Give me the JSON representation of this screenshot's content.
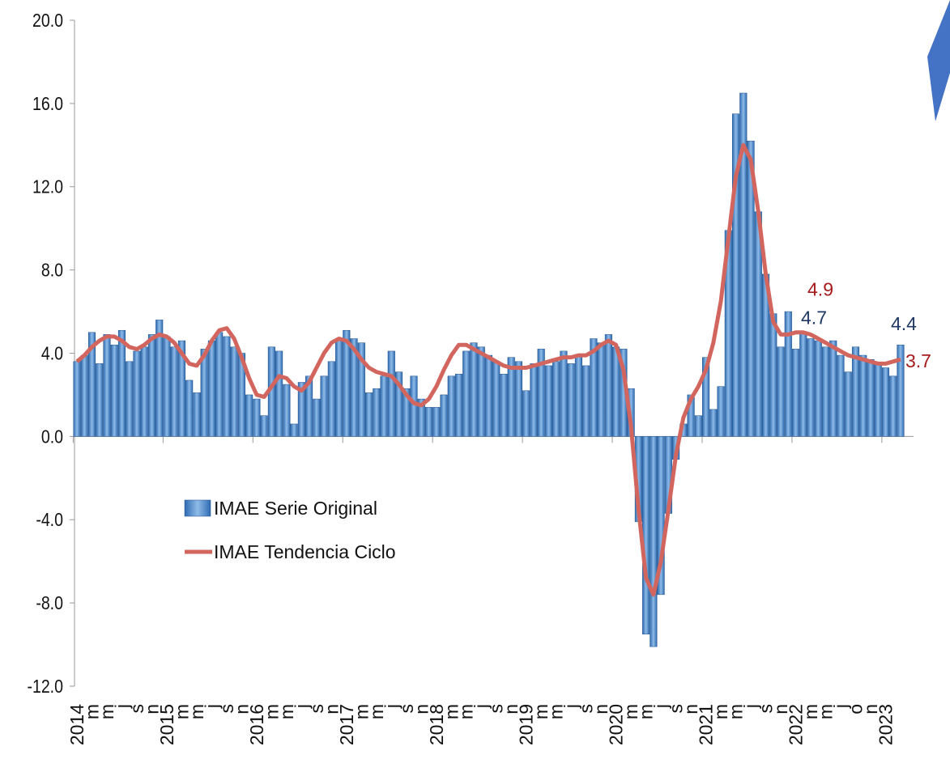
{
  "chart_data": {
    "type": "bar",
    "categories": [
      "2014",
      null,
      "m",
      null,
      "m",
      null,
      "j",
      null,
      "s",
      null,
      "n",
      null,
      "2015",
      null,
      "m",
      null,
      "m",
      null,
      "j",
      null,
      "s",
      null,
      "n",
      null,
      "2016",
      null,
      "m",
      null,
      "m",
      null,
      "j",
      null,
      "s",
      null,
      "n",
      null,
      "2017",
      null,
      "m",
      null,
      "m",
      null,
      "j",
      null,
      "s",
      null,
      "n",
      null,
      "2018",
      null,
      "m",
      null,
      "m",
      null,
      "j",
      null,
      "s",
      null,
      "n",
      null,
      "2019",
      null,
      "m",
      null,
      "m",
      null,
      "j",
      null,
      "s",
      null,
      "n",
      null,
      "2020",
      null,
      "m",
      null,
      "m",
      null,
      "j",
      null,
      "s",
      null,
      "n",
      null,
      "2021",
      null,
      "m",
      null,
      "m",
      null,
      "j",
      null,
      "s",
      null,
      "n",
      null,
      "2022",
      null,
      "m",
      null,
      "m",
      null,
      "j",
      null,
      "o",
      null,
      "n",
      null,
      "2023",
      null,
      null
    ],
    "series": [
      {
        "name": "IMAE Serie Original",
        "color": "#4a86c8",
        "values": [
          3.6,
          3.9,
          5.0,
          3.5,
          4.9,
          4.4,
          5.1,
          3.6,
          4.1,
          4.3,
          4.9,
          5.6,
          4.8,
          4.3,
          4.6,
          2.7,
          2.1,
          4.2,
          4.6,
          5.0,
          4.8,
          4.3,
          4.0,
          2.0,
          1.8,
          1.0,
          4.3,
          4.1,
          2.5,
          0.6,
          2.6,
          2.9,
          1.8,
          2.9,
          3.6,
          4.6,
          5.1,
          4.7,
          4.5,
          2.1,
          2.3,
          2.9,
          4.1,
          3.1,
          2.3,
          2.9,
          1.8,
          1.4,
          1.4,
          2.0,
          2.9,
          3.0,
          4.1,
          4.5,
          4.3,
          3.9,
          3.6,
          3.0,
          3.8,
          3.6,
          2.2,
          3.5,
          4.2,
          3.4,
          3.6,
          4.1,
          3.5,
          3.9,
          3.4,
          4.7,
          4.5,
          4.9,
          4.3,
          4.2,
          2.3,
          -4.1,
          -9.5,
          -10.1,
          -7.6,
          -3.7,
          -1.1,
          0.6,
          2.0,
          1.0,
          3.8,
          1.3,
          2.4,
          9.9,
          15.5,
          16.5,
          14.2,
          10.8,
          7.8,
          5.9,
          4.3,
          6.0,
          4.2,
          5.0,
          4.7,
          4.6,
          4.3,
          4.6,
          3.9,
          3.1,
          4.3,
          3.9,
          3.7,
          3.5,
          3.3,
          2.9,
          4.4
        ],
        "value_labels": [
          null,
          null,
          null,
          null,
          null,
          null,
          null,
          null,
          null,
          null,
          null,
          null,
          null,
          null,
          null,
          null,
          null,
          null,
          null,
          null,
          null,
          null,
          null,
          null,
          null,
          null,
          null,
          null,
          null,
          null,
          null,
          null,
          null,
          null,
          null,
          null,
          null,
          null,
          null,
          null,
          null,
          null,
          null,
          null,
          null,
          null,
          null,
          null,
          null,
          null,
          null,
          null,
          null,
          null,
          null,
          null,
          null,
          null,
          null,
          null,
          null,
          null,
          null,
          null,
          null,
          null,
          null,
          null,
          null,
          null,
          null,
          null,
          null,
          null,
          null,
          null,
          null,
          null,
          null,
          null,
          null,
          null,
          null,
          null,
          null,
          null,
          null,
          null,
          null,
          null,
          null,
          null,
          null,
          null,
          null,
          null,
          null,
          null,
          "4.7",
          null,
          null,
          null,
          null,
          null,
          null,
          null,
          null,
          null,
          null,
          null,
          "4.4"
        ]
      },
      {
        "name": "IMAE Tendencia Ciclo",
        "color": "#d2665f",
        "type": "line",
        "values": [
          3.6,
          3.9,
          4.3,
          4.6,
          4.8,
          4.8,
          4.6,
          4.3,
          4.2,
          4.4,
          4.7,
          4.9,
          4.8,
          4.5,
          4.0,
          3.5,
          3.4,
          3.9,
          4.6,
          5.1,
          5.2,
          4.7,
          3.8,
          2.8,
          2.0,
          1.9,
          2.4,
          2.9,
          2.8,
          2.4,
          2.2,
          2.6,
          3.3,
          4.0,
          4.5,
          4.7,
          4.6,
          4.2,
          3.7,
          3.3,
          3.1,
          3.0,
          2.9,
          2.5,
          2.0,
          1.6,
          1.5,
          1.8,
          2.4,
          3.2,
          3.9,
          4.4,
          4.4,
          4.2,
          4.0,
          3.8,
          3.6,
          3.4,
          3.3,
          3.3,
          3.3,
          3.4,
          3.5,
          3.6,
          3.7,
          3.8,
          3.8,
          3.9,
          3.9,
          4.1,
          4.4,
          4.6,
          4.4,
          3.2,
          0.5,
          -3.5,
          -6.8,
          -7.6,
          -6.0,
          -3.5,
          -0.9,
          0.9,
          1.8,
          2.4,
          3.2,
          4.5,
          6.5,
          9.5,
          12.5,
          14.0,
          13.3,
          10.8,
          7.8,
          5.5,
          4.9,
          4.9,
          5.0,
          5.0,
          4.9,
          4.7,
          4.5,
          4.3,
          4.1,
          3.9,
          3.8,
          3.7,
          3.6,
          3.5,
          3.5,
          3.6,
          3.7
        ],
        "value_labels": [
          null,
          null,
          null,
          null,
          null,
          null,
          null,
          null,
          null,
          null,
          null,
          null,
          null,
          null,
          null,
          null,
          null,
          null,
          null,
          null,
          null,
          null,
          null,
          null,
          null,
          null,
          null,
          null,
          null,
          null,
          null,
          null,
          null,
          null,
          null,
          null,
          null,
          null,
          null,
          null,
          null,
          null,
          null,
          null,
          null,
          null,
          null,
          null,
          null,
          null,
          null,
          null,
          null,
          null,
          null,
          null,
          null,
          null,
          null,
          null,
          null,
          null,
          null,
          null,
          null,
          null,
          null,
          null,
          null,
          null,
          null,
          null,
          null,
          null,
          null,
          null,
          null,
          null,
          null,
          null,
          null,
          null,
          null,
          null,
          null,
          null,
          null,
          null,
          null,
          null,
          null,
          null,
          null,
          null,
          null,
          null,
          null,
          null,
          "4.9",
          null,
          null,
          null,
          null,
          null,
          null,
          null,
          null,
          null,
          null,
          null,
          "3.7"
        ]
      }
    ],
    "ylim": [
      -12,
      20
    ],
    "yticks": [
      {
        "value": -12,
        "label": "-12.0"
      },
      {
        "value": -8,
        "label": "-8.0"
      },
      {
        "value": -4,
        "label": "-4.0"
      },
      {
        "value": 0,
        "label": "0.0"
      },
      {
        "value": 4,
        "label": "4.0"
      },
      {
        "value": 8,
        "label": "8.0"
      },
      {
        "value": 12,
        "label": "12.0"
      },
      {
        "value": 16,
        "label": "16.0"
      },
      {
        "value": 20,
        "label": "20.0"
      }
    ],
    "legend": "center-left"
  }
}
